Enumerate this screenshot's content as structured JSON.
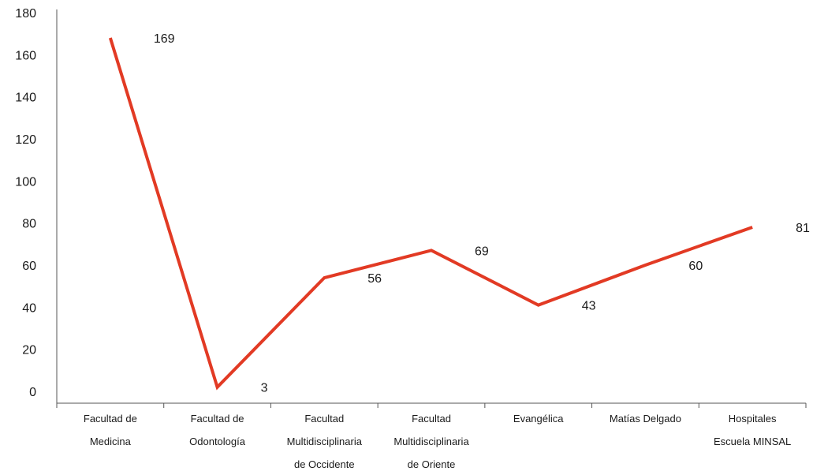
{
  "chart_data": {
    "type": "line",
    "categories": [
      [
        "Facultad de",
        "Medicina"
      ],
      [
        "Facultad de",
        "Odontología"
      ],
      [
        "Facultad",
        "Multidisciplinaria",
        "de Occidente"
      ],
      [
        "Facultad",
        "Multidisciplinaria",
        "de Oriente"
      ],
      [
        "Evangélica"
      ],
      [
        "Matías Delgado"
      ],
      [
        "Hospitales",
        "Escuela MINSAL"
      ]
    ],
    "series": [
      {
        "values": [
          169,
          3,
          56,
          69,
          43,
          60,
          81
        ],
        "color": "#e23a24"
      }
    ],
    "plotted_values": [
      168,
      2,
      54,
      67,
      41,
      60,
      78
    ],
    "y_ticks": [
      "0",
      "20",
      "40",
      "60",
      "80",
      "100",
      "120",
      "140",
      "160",
      "180"
    ],
    "ylim": [
      0,
      180
    ],
    "grid": false,
    "legend": "none",
    "title": "",
    "xlabel": "",
    "ylabel": ""
  }
}
